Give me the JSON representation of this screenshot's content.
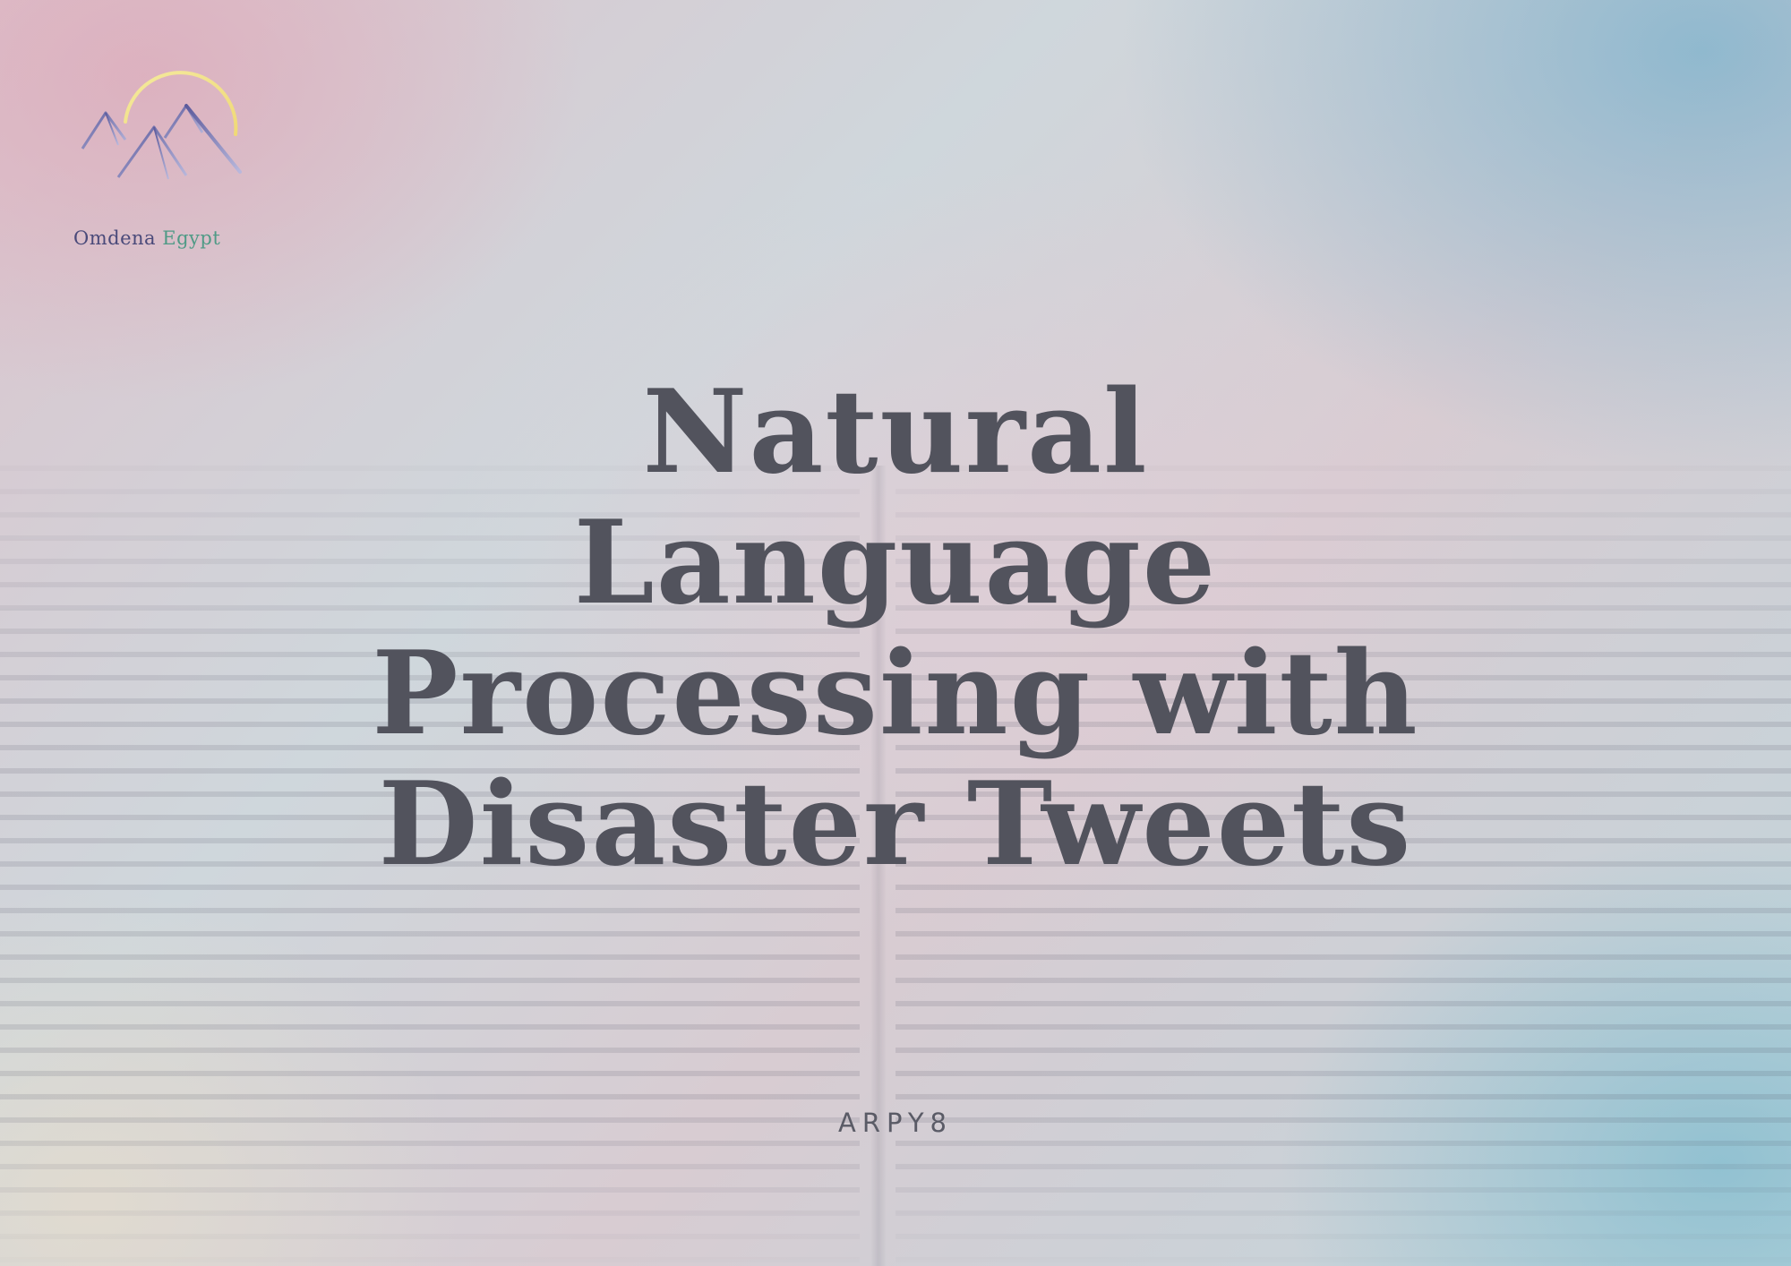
{
  "logo": {
    "name_part1": "Omdena",
    "name_part2": "Egypt",
    "icon": "pyramids-sun-icon",
    "colors": {
      "sun": "#f1e39a",
      "pyramids": "#6f6ca8",
      "name_part1": "#4a4a7a",
      "name_part2": "#4f9a86"
    }
  },
  "title": {
    "lines": [
      "Natural",
      "Language",
      "Processing with",
      "Disaster Tweets"
    ],
    "color": "#52535d"
  },
  "author": "ARPY8"
}
